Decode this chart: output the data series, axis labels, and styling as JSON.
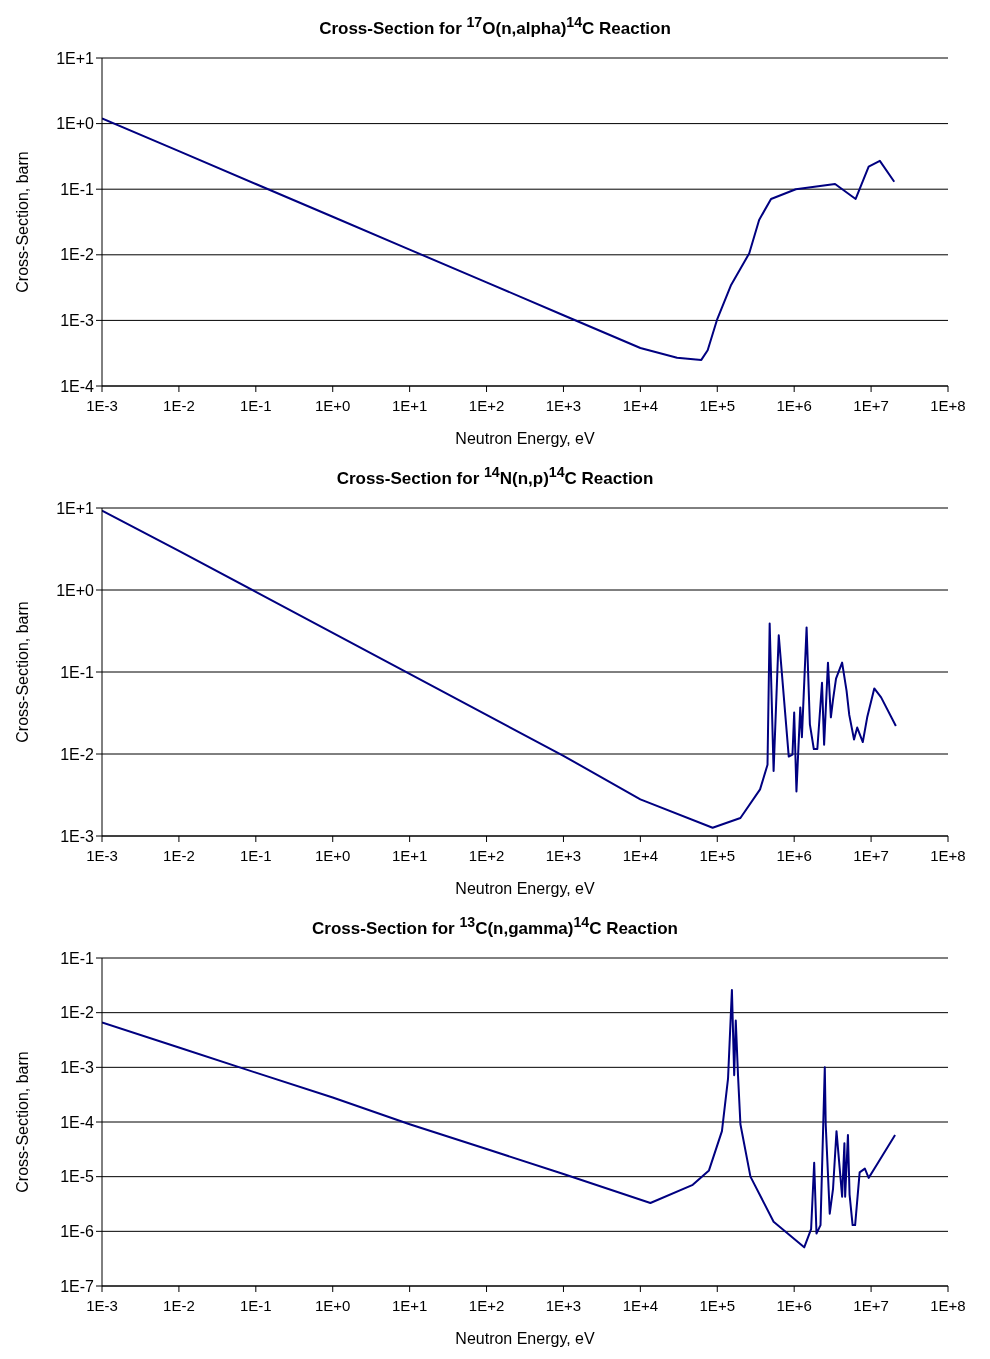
{
  "chart_data": [
    {
      "type": "line",
      "title": "Cross-Section for $^{17}$O(n,alpha)$^{14}$C Reaction",
      "xlabel": "Neutron Energy, eV",
      "ylabel": "Cross-Section, barn",
      "log": "xy",
      "grid": "y",
      "marker": "none",
      "line_style": "solid",
      "xlim": [
        0.001,
        100000000
      ],
      "xticks": [
        {
          "value": 0.001,
          "label": "1E-3"
        },
        {
          "value": 0.01,
          "label": "1E-2"
        },
        {
          "value": 0.1,
          "label": "1E-1"
        },
        {
          "value": 1,
          "label": "1E+0"
        },
        {
          "value": 10,
          "label": "1E+1"
        },
        {
          "value": 100,
          "label": "1E+2"
        },
        {
          "value": 1000,
          "label": "1E+3"
        },
        {
          "value": 10000,
          "label": "1E+4"
        },
        {
          "value": 100000,
          "label": "1E+5"
        },
        {
          "value": 1000000,
          "label": "1E+6"
        },
        {
          "value": 10000000,
          "label": "1E+7"
        },
        {
          "value": 100000000,
          "label": "1E+8"
        }
      ],
      "ylim": [
        0.0001,
        10
      ],
      "yticks": [
        {
          "value": 0.0001,
          "label": "1E-4"
        },
        {
          "value": 0.001,
          "label": "1E-3"
        },
        {
          "value": 0.01,
          "label": "1E-2"
        },
        {
          "value": 0.1,
          "label": "1E-1"
        },
        {
          "value": 1,
          "label": "1E+0"
        },
        {
          "value": 10,
          "label": "1E+1"
        }
      ],
      "series": [
        {
          "color": "#000080",
          "x": [
            0.001,
            0.01,
            0.1,
            1,
            10,
            100,
            1000,
            10000,
            30000,
            62000,
            75000,
            100000,
            150000,
            260000,
            350000,
            500000,
            1050000,
            3400000,
            6300000,
            9300000,
            13000000,
            20000000
          ],
          "values": [
            1.2,
            0.38,
            0.12,
            0.038,
            0.012,
            0.0038,
            0.0012,
            0.00038,
            0.00027,
            0.00025,
            0.00035,
            0.00105,
            0.0034,
            0.0105,
            0.034,
            0.071,
            0.1,
            0.12,
            0.071,
            0.22,
            0.27,
            0.13
          ]
        }
      ]
    },
    {
      "type": "line",
      "title": "Cross-Section for $^{14}$N(n,p)$^{14}$C Reaction",
      "xlabel": "Neutron Energy, eV",
      "ylabel": "Cross-Section, barn",
      "log": "xy",
      "grid": "y",
      "marker": "none",
      "line_style": "solid",
      "xlim": [
        0.001,
        100000000
      ],
      "xticks": [
        {
          "value": 0.001,
          "label": "1E-3"
        },
        {
          "value": 0.01,
          "label": "1E-2"
        },
        {
          "value": 0.1,
          "label": "1E-1"
        },
        {
          "value": 1,
          "label": "1E+0"
        },
        {
          "value": 10,
          "label": "1E+1"
        },
        {
          "value": 100,
          "label": "1E+2"
        },
        {
          "value": 1000,
          "label": "1E+3"
        },
        {
          "value": 10000,
          "label": "1E+4"
        },
        {
          "value": 100000,
          "label": "1E+5"
        },
        {
          "value": 1000000,
          "label": "1E+6"
        },
        {
          "value": 10000000,
          "label": "1E+7"
        },
        {
          "value": 100000000,
          "label": "1E+8"
        }
      ],
      "ylim": [
        0.001,
        10
      ],
      "yticks": [
        {
          "value": 0.001,
          "label": "1E-3"
        },
        {
          "value": 0.01,
          "label": "1E-2"
        },
        {
          "value": 0.1,
          "label": "1E-1"
        },
        {
          "value": 1,
          "label": "1E+0"
        },
        {
          "value": 10,
          "label": "1E+1"
        }
      ],
      "series": [
        {
          "color": "#000080",
          "x": [
            0.001,
            0.01,
            0.1,
            1,
            10,
            100,
            1000,
            10000,
            87000,
            200000,
            360000,
            450000,
            480000,
            540000,
            630000,
            850000,
            950000,
            1000000,
            1070000,
            1200000,
            1260000,
            1450000,
            1600000,
            1800000,
            2000000,
            2300000,
            2450000,
            2750000,
            3000000,
            3200000,
            3500000,
            4200000,
            4800000,
            5200000,
            6000000,
            6600000,
            7800000,
            8900000,
            11000000,
            13500000,
            21000000
          ],
          "values": [
            9.3,
            3.0,
            0.95,
            0.3,
            0.095,
            0.03,
            0.0095,
            0.0028,
            0.00126,
            0.00166,
            0.0037,
            0.0074,
            0.39,
            0.0062,
            0.28,
            0.0093,
            0.0098,
            0.032,
            0.0035,
            0.037,
            0.016,
            0.35,
            0.023,
            0.0115,
            0.0115,
            0.074,
            0.013,
            0.13,
            0.028,
            0.046,
            0.083,
            0.13,
            0.059,
            0.03,
            0.015,
            0.021,
            0.014,
            0.028,
            0.063,
            0.049,
            0.022
          ]
        }
      ]
    },
    {
      "type": "line",
      "title": "Cross-Section for $^{13}$C(n,gamma)$^{14}$C Reaction",
      "xlabel": "Neutron Energy, eV",
      "ylabel": "Cross-Section, barn",
      "log": "xy",
      "grid": "y",
      "marker": "none",
      "line_style": "solid",
      "xlim": [
        0.001,
        100000000
      ],
      "xticks": [
        {
          "value": 0.001,
          "label": "1E-3"
        },
        {
          "value": 0.01,
          "label": "1E-2"
        },
        {
          "value": 0.1,
          "label": "1E-1"
        },
        {
          "value": 1,
          "label": "1E+0"
        },
        {
          "value": 10,
          "label": "1E+1"
        },
        {
          "value": 100,
          "label": "1E+2"
        },
        {
          "value": 1000,
          "label": "1E+3"
        },
        {
          "value": 10000,
          "label": "1E+4"
        },
        {
          "value": 100000,
          "label": "1E+5"
        },
        {
          "value": 1000000,
          "label": "1E+6"
        },
        {
          "value": 10000000,
          "label": "1E+7"
        },
        {
          "value": 100000000,
          "label": "1E+8"
        }
      ],
      "ylim": [
        1e-07,
        0.1
      ],
      "yticks": [
        {
          "value": 1e-07,
          "label": "1E-7"
        },
        {
          "value": 1e-06,
          "label": "1E-6"
        },
        {
          "value": 1e-05,
          "label": "1E-5"
        },
        {
          "value": 0.0001,
          "label": "1E-4"
        },
        {
          "value": 0.001,
          "label": "1E-3"
        },
        {
          "value": 0.01,
          "label": "1E-2"
        },
        {
          "value": 0.1,
          "label": "1E-1"
        }
      ],
      "series": [
        {
          "color": "#000080",
          "x": [
            0.001,
            0.01,
            0.1,
            1,
            10,
            100,
            1000,
            13500,
            48000,
            78000,
            115000,
            138000,
            155000,
            166000,
            174000,
            186000,
            200000,
            270000,
            540000,
            1350000,
            1660000,
            1820000,
            1950000,
            2200000,
            2500000,
            2570000,
            2900000,
            3200000,
            3550000,
            4200000,
            4500000,
            4600000,
            5000000,
            5250000,
            5750000,
            6200000,
            7100000,
            8300000,
            9300000,
            11700000,
            20500000
          ],
          "values": [
            0.0066,
            0.0023,
            0.0008,
            0.00028,
            9.1e-05,
            3.2e-05,
            1.12e-05,
            3.3e-06,
            7.1e-06,
            1.3e-05,
            6.8e-05,
            0.00062,
            0.026,
            0.00072,
            0.0072,
            0.00072,
            9.1e-05,
            1e-05,
            1.5e-06,
            5.1e-07,
            1.1e-06,
            1.8e-05,
            9.1e-07,
            1.3e-06,
            0.001,
            9.1e-05,
            2.1e-06,
            6e-06,
            6.8e-05,
            4.3e-06,
            4.1e-05,
            4.3e-06,
            5.8e-05,
            4.7e-06,
            1.3e-06,
            1.3e-06,
            1.2e-05,
            1.4e-05,
            9.5e-06,
            1.6e-05,
            5.8e-05
          ]
        }
      ]
    }
  ]
}
